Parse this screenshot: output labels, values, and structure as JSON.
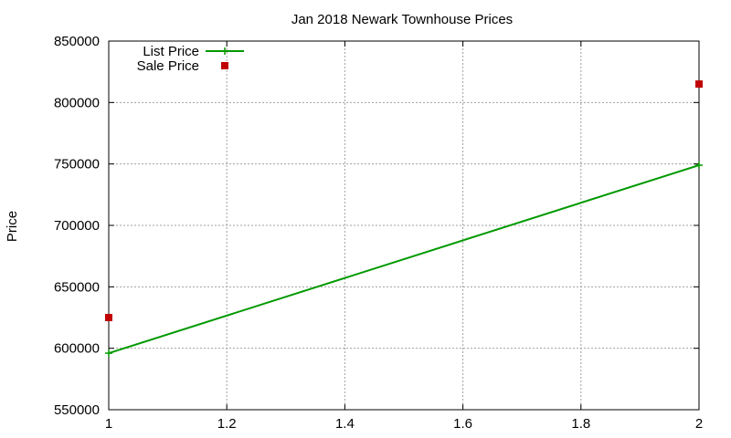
{
  "chart_data": {
    "type": "line",
    "title": "Jan 2018 Newark Townhouse Prices",
    "xlabel": "",
    "ylabel": "Price",
    "xlim": [
      1,
      2
    ],
    "ylim": [
      550000,
      850000
    ],
    "grid": true,
    "legend_position": "top-left",
    "x_ticks": [
      1,
      1.2,
      1.4,
      1.6,
      1.8,
      2
    ],
    "x_tick_labels": [
      "1",
      "1.2",
      "1.4",
      "1.6",
      "1.8",
      "2"
    ],
    "y_ticks": [
      550000,
      600000,
      650000,
      700000,
      750000,
      800000,
      850000
    ],
    "y_tick_labels": [
      "550000",
      "600000",
      "650000",
      "700000",
      "750000",
      "800000",
      "850000"
    ],
    "series": [
      {
        "name": "List Price",
        "style": "linespoints",
        "color": "#009900",
        "points": [
          {
            "x": 1,
            "y": 596000
          },
          {
            "x": 2,
            "y": 749000
          }
        ]
      },
      {
        "name": "Sale Price",
        "style": "points",
        "color": "#c00000",
        "points": [
          {
            "x": 1,
            "y": 625000
          },
          {
            "x": 2,
            "y": 815000
          }
        ]
      }
    ]
  }
}
